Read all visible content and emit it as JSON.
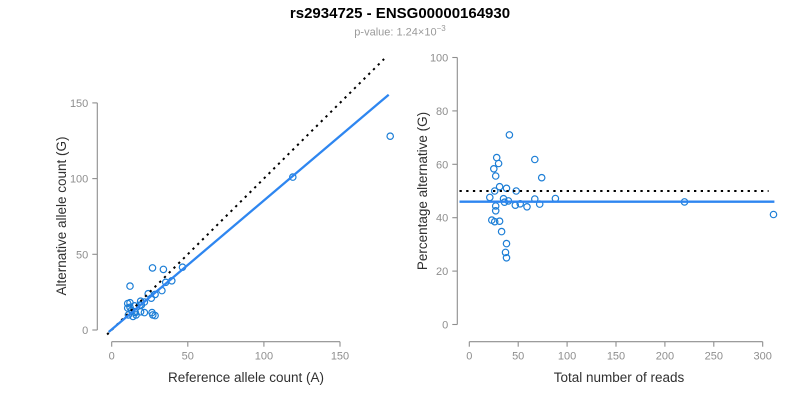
{
  "header": {
    "title": "rs2934725 - ENSG00000164930",
    "pvalue_text": "p-value: 1.24×10",
    "pvalue_exponent": "−3"
  },
  "colors": {
    "accent_blue": "#1C7ED6",
    "line_blue": "#2E86F0",
    "identity_black": "#000000",
    "axis_gray": "#8e8e8e",
    "tick_text_gray": "#8e8e8e",
    "label_text": "#303030"
  },
  "chart_data": [
    {
      "id": "allele-counts-scatter",
      "type": "scatter",
      "xlabel": "Reference allele count (A)",
      "ylabel": "Alternative allele count (G)",
      "xticks": [
        0,
        50,
        100,
        150
      ],
      "yticks": [
        0,
        50,
        100,
        150
      ],
      "xlim": [
        -9,
        187
      ],
      "ylim": [
        -8,
        169
      ],
      "grid": false,
      "point_color": "#1C7ED6",
      "points": [
        [
          12,
          29
        ],
        [
          10.5,
          17.5
        ],
        [
          12,
          18
        ],
        [
          10.5,
          14.5
        ],
        [
          12,
          15
        ],
        [
          26.8,
          41
        ],
        [
          34,
          40
        ],
        [
          46.5,
          41.5
        ],
        [
          15,
          16
        ],
        [
          19,
          19
        ],
        [
          13,
          13
        ],
        [
          24,
          24
        ],
        [
          11,
          10
        ],
        [
          18.5,
          16.5
        ],
        [
          19.5,
          16.5
        ],
        [
          21.5,
          18.5
        ],
        [
          35.5,
          31.5
        ],
        [
          39.5,
          32.5
        ],
        [
          26,
          21
        ],
        [
          28.5,
          23.5
        ],
        [
          33,
          26
        ],
        [
          15,
          12
        ],
        [
          15.5,
          11.5
        ],
        [
          14,
          9
        ],
        [
          16,
          10
        ],
        [
          19,
          12
        ],
        [
          21.5,
          11.5
        ],
        [
          26.5,
          11.5
        ],
        [
          27,
          10
        ],
        [
          28.5,
          9.5
        ],
        [
          119,
          101
        ],
        [
          183,
          128
        ]
      ],
      "lines": [
        {
          "name": "identity-line",
          "style": "dotted",
          "color": "#000000",
          "x1": -3,
          "y1": -3,
          "x2": 179,
          "y2": 179
        },
        {
          "name": "regression-line",
          "style": "solid",
          "color": "#2E86F0",
          "x1": -2,
          "y1": -1.3,
          "x2": 182,
          "y2": 155.4
        }
      ]
    },
    {
      "id": "percentage-alternative-scatter",
      "type": "scatter",
      "xlabel": "Total number of reads",
      "ylabel": "Percentage alternative (G)",
      "xticks": [
        0,
        50,
        100,
        150,
        200,
        250,
        300
      ],
      "yticks": [
        0,
        20,
        40,
        60,
        80,
        100
      ],
      "xlim": [
        -12,
        318
      ],
      "ylim": [
        -6,
        101
      ],
      "grid": false,
      "point_color": "#1C7ED6",
      "points": [
        [
          41,
          71
        ],
        [
          28,
          62.5
        ],
        [
          30,
          60.3
        ],
        [
          25,
          58.3
        ],
        [
          27,
          55.6
        ],
        [
          67,
          61.8
        ],
        [
          74,
          55
        ],
        [
          88,
          47.2
        ],
        [
          31,
          51.6
        ],
        [
          38,
          51
        ],
        [
          26,
          50
        ],
        [
          48,
          50
        ],
        [
          21,
          47.6
        ],
        [
          35,
          47.1
        ],
        [
          36,
          45.8
        ],
        [
          40,
          46.3
        ],
        [
          67,
          47
        ],
        [
          72,
          45.1
        ],
        [
          47,
          44.7
        ],
        [
          52,
          45.2
        ],
        [
          59,
          44.1
        ],
        [
          27,
          44.4
        ],
        [
          27,
          42.6
        ],
        [
          23,
          39.1
        ],
        [
          26,
          38.5
        ],
        [
          31,
          38.7
        ],
        [
          33,
          34.8
        ],
        [
          38,
          30.3
        ],
        [
          37,
          27
        ],
        [
          38,
          25
        ],
        [
          220,
          45.9
        ],
        [
          311,
          41.2
        ]
      ],
      "lines": [
        {
          "name": "null-50pct-line",
          "style": "dotted",
          "color": "#000000",
          "x1": -10,
          "y1": 50,
          "x2": 306,
          "y2": 50
        },
        {
          "name": "mean-pct-line",
          "style": "solid",
          "color": "#2E86F0",
          "x1": -10,
          "y1": 46,
          "x2": 312,
          "y2": 46
        }
      ]
    }
  ]
}
